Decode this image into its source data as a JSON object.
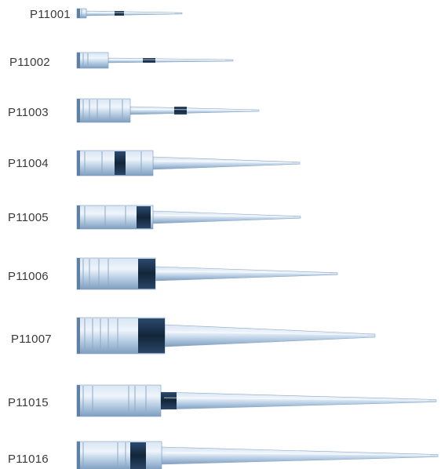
{
  "catalog": {
    "tips": [
      {
        "code": "P11001"
      },
      {
        "code": "P11002"
      },
      {
        "code": "P11003"
      },
      {
        "code": "P11004"
      },
      {
        "code": "P11005"
      },
      {
        "code": "P11006"
      },
      {
        "code": "P11007"
      },
      {
        "code": "P11015"
      },
      {
        "code": "P11016"
      }
    ]
  },
  "colors": {
    "tip_body": "#b9cfe3",
    "tip_highlight": "#e6eff8",
    "tip_shadow": "#7e9cbd",
    "band": "#1d3450",
    "rib": "#9cb4cf",
    "label_text": "#3a3a3a"
  }
}
